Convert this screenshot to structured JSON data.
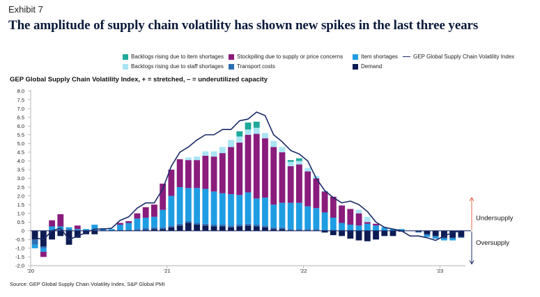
{
  "exhibit": "Exhibit 7",
  "title": "The amplitude of supply chain volatility has shown new spikes in the last three years",
  "source": "Source: GEP Global Supply Chain Volatility Index, S&P Global PMI",
  "colors": {
    "backlogs_item": "#1fa99a",
    "backlogs_staff": "#a9e4f3",
    "stockpiling": "#8a1c7c",
    "transport": "#2d6db4",
    "item": "#1f9de3",
    "demand": "#0d1b52",
    "gsc_line": "#1b2a66"
  },
  "chart_data": {
    "type": "bar",
    "subtitle": "GEP Global Supply Chain Volatility Index, + = stretched, – = underutilized capacity",
    "ylim": [
      -2.0,
      8.0
    ],
    "yticks": [
      "8.0",
      "7.5",
      "7.0",
      "6.5",
      "6.0",
      "5.5",
      "5.0",
      "4.5",
      "4.0",
      "3.5",
      "3.0",
      "2.5",
      "2.0",
      "1.5",
      "1.0",
      "0.5",
      "0",
      "-0.5",
      "-1.0",
      "-1.5",
      "-2.0"
    ],
    "xticks": [
      {
        "label": "'20",
        "index": 0
      },
      {
        "label": "'21",
        "index": 16
      },
      {
        "label": "'22",
        "index": 32
      },
      {
        "label": "'23",
        "index": 48
      }
    ],
    "annotations": {
      "up": "Undersupply",
      "down": "Oversupply"
    },
    "legend": [
      {
        "key": "backlogs_item",
        "label": "Backlogs rising due to item shortages",
        "kind": "bar"
      },
      {
        "key": "backlogs_staff",
        "label": "Backlogs rising due to staff shortages",
        "kind": "bar"
      },
      {
        "key": "stockpiling",
        "label": "Stockpiling due to supply or price concerns",
        "kind": "bar"
      },
      {
        "key": "transport",
        "label": "Transport costs",
        "kind": "bar"
      },
      {
        "key": "item",
        "label": "Item shortages",
        "kind": "bar"
      },
      {
        "key": "demand",
        "label": "Demand",
        "kind": "bar"
      },
      {
        "key": "gsc",
        "label": "GEP Global Supply Chain Volatility Index",
        "kind": "line"
      }
    ],
    "series": [
      {
        "key": "demand",
        "name": "Demand",
        "values": [
          -0.5,
          -0.9,
          -0.5,
          -0.3,
          -0.8,
          -0.4,
          -0.2,
          -0.2,
          0.0,
          0.0,
          0.0,
          0.0,
          0.0,
          0.05,
          0.1,
          0.1,
          0.2,
          0.3,
          0.45,
          0.35,
          0.3,
          0.25,
          0.25,
          0.2,
          0.25,
          0.3,
          0.25,
          0.2,
          0.1,
          0.1,
          0.0,
          0.0,
          0.0,
          0.0,
          -0.1,
          -0.25,
          -0.3,
          -0.45,
          -0.55,
          -0.6,
          -0.5,
          -0.3,
          -0.3,
          -0.05,
          0.0,
          -0.05,
          -0.2,
          -0.3,
          -0.4,
          -0.4,
          -0.35
        ]
      },
      {
        "key": "transport",
        "name": "Transport costs",
        "values": [
          -0.3,
          -0.1,
          0.05,
          0.1,
          0.1,
          0.05,
          0.05,
          0.05,
          0.05,
          0.0,
          0.05,
          0.05,
          0.1,
          0.1,
          0.1,
          0.1,
          0.1,
          0.1,
          0.1,
          0.1,
          0.1,
          0.1,
          0.1,
          0.1,
          0.1,
          0.1,
          0.1,
          0.1,
          0.1,
          0.1,
          0.1,
          0.1,
          0.1,
          0.1,
          0.05,
          0.05,
          0.05,
          0.05,
          0.0,
          0.0,
          0.0,
          0.0,
          0.0,
          0.0,
          0.0,
          -0.05,
          -0.05,
          -0.05,
          -0.05,
          -0.05,
          -0.05
        ]
      },
      {
        "key": "item",
        "name": "Item shortages",
        "values": [
          -0.2,
          -0.2,
          0.2,
          0.15,
          0.1,
          0.05,
          0.05,
          0.3,
          0.1,
          0.1,
          0.3,
          0.4,
          0.6,
          0.6,
          0.6,
          1.0,
          1.7,
          2.1,
          1.9,
          2.0,
          2.0,
          1.9,
          1.8,
          1.8,
          1.7,
          1.8,
          1.5,
          1.6,
          1.3,
          1.4,
          1.5,
          1.5,
          1.3,
          1.2,
          1.0,
          0.7,
          0.4,
          0.3,
          0.3,
          0.4,
          0.3,
          0.2,
          0.1,
          0.1,
          0.0,
          0.0,
          -0.1,
          -0.1,
          -0.1,
          -0.1,
          0.0
        ]
      },
      {
        "key": "stockpiling",
        "name": "Stockpiling due to supply or price concerns",
        "values": [
          0.0,
          -0.3,
          0.35,
          0.7,
          0.0,
          0.2,
          0.0,
          0.0,
          0.0,
          0.0,
          0.1,
          0.1,
          0.3,
          0.6,
          0.7,
          1.5,
          1.5,
          1.6,
          1.6,
          1.6,
          1.9,
          2.0,
          2.3,
          2.7,
          3.0,
          3.3,
          3.7,
          3.4,
          3.3,
          2.9,
          2.1,
          2.2,
          2.0,
          1.7,
          1.2,
          1.2,
          1.0,
          0.9,
          0.7,
          0.1,
          0.1,
          0.0,
          0.0,
          0.0,
          0.0,
          0.0,
          0.0,
          0.0,
          0.0,
          0.0,
          0.0
        ]
      },
      {
        "key": "backlogs_staff",
        "name": "Backlogs rising due to staff shortages",
        "values": [
          0.0,
          0.0,
          0.0,
          0.0,
          0.0,
          0.0,
          0.0,
          0.0,
          0.0,
          0.0,
          0.0,
          0.0,
          0.0,
          0.0,
          0.0,
          0.0,
          0.0,
          0.0,
          0.15,
          0.2,
          0.25,
          0.3,
          0.35,
          0.4,
          0.35,
          0.3,
          0.35,
          0.3,
          0.35,
          0.3,
          0.25,
          0.2,
          0.2,
          0.15,
          0.05,
          0.0,
          0.0,
          0.0,
          0.2,
          0.3,
          0.0,
          0.0,
          0.0,
          0.0,
          0.0,
          0.0,
          0.0,
          0.0,
          0.0,
          0.0,
          0.0
        ]
      },
      {
        "key": "backlogs_item",
        "name": "Backlogs rising due to item shortages",
        "values": [
          0.0,
          0.0,
          0.0,
          0.0,
          0.0,
          0.0,
          0.0,
          0.0,
          0.0,
          0.0,
          0.0,
          0.0,
          0.0,
          0.0,
          0.0,
          0.0,
          0.0,
          0.0,
          0.0,
          0.0,
          0.0,
          0.0,
          0.0,
          0.0,
          0.3,
          0.4,
          0.35,
          0.0,
          0.0,
          0.0,
          0.1,
          0.15,
          0.0,
          0.0,
          0.0,
          0.0,
          0.0,
          0.0,
          0.0,
          0.0,
          0.0,
          0.0,
          0.0,
          0.0,
          0.0,
          0.0,
          0.0,
          0.0,
          0.0,
          0.0,
          0.0
        ]
      }
    ],
    "gsc_index": [
      -0.4,
      -0.5,
      0.0,
      0.15,
      -0.5,
      -0.3,
      -0.1,
      0.1,
      0.1,
      0.15,
      0.6,
      0.8,
      1.3,
      1.6,
      1.6,
      2.4,
      3.7,
      4.5,
      4.8,
      5.2,
      5.5,
      5.5,
      5.8,
      5.8,
      6.3,
      6.4,
      6.8,
      6.6,
      5.5,
      5.1,
      4.6,
      4.4,
      4.0,
      3.0,
      2.3,
      1.9,
      1.6,
      1.7,
      1.5,
      1.1,
      0.5,
      0.2,
      0.1,
      0.0,
      -0.3,
      -0.3,
      -0.4,
      -0.55,
      -0.3,
      -0.1,
      0.0
    ]
  }
}
